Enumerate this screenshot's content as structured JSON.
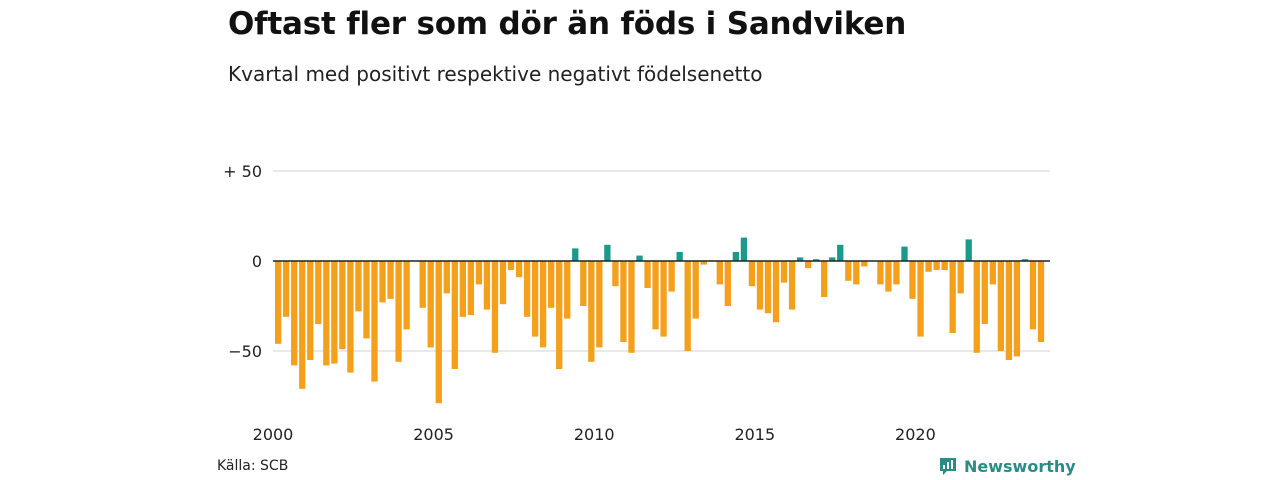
{
  "title": "Oftast fler som dör än föds i Sandviken",
  "subtitle": "Kvartal med positivt respektive negativt födelsenetto",
  "source": "Källa: SCB",
  "brand": {
    "name": "Newsworthy",
    "icon": "newsworthy-logo-icon",
    "color": "#2a8c86"
  },
  "chart_data": {
    "type": "bar",
    "x_start": "2000-Q1",
    "x_tick_labels": [
      "2000",
      "2005",
      "2010",
      "2015",
      "2020"
    ],
    "y_tick_labels": [
      "+ 50",
      "0",
      "−50"
    ],
    "y_ticks": [
      50,
      0,
      -50
    ],
    "ylim": [
      -80,
      50
    ],
    "grid": true,
    "colors": {
      "positive": "#1a9a8a",
      "negative": "#f5a01a"
    },
    "values": [
      -46,
      -31,
      -58,
      -71,
      -55,
      -35,
      -58,
      -57,
      -49,
      -62,
      -28,
      -43,
      -67,
      -23,
      -21,
      -56,
      -38,
      0,
      -26,
      -48,
      -79,
      -18,
      -60,
      -31,
      -30,
      -13,
      -27,
      -51,
      -24,
      -5,
      -9,
      -31,
      -42,
      -48,
      -26,
      -60,
      -32,
      7,
      -25,
      -56,
      -48,
      9,
      -14,
      -45,
      -51,
      3,
      -15,
      -38,
      -42,
      -17,
      5,
      -50,
      -32,
      -2,
      0,
      -13,
      -25,
      5,
      13,
      -14,
      -27,
      -29,
      -34,
      -12,
      -27,
      2,
      -4,
      1,
      -20,
      2,
      9,
      -11,
      -13,
      -3,
      0,
      -13,
      -17,
      -13,
      8,
      -21,
      -42,
      -6,
      -5,
      -5,
      -40,
      -18,
      12,
      -51,
      -35,
      -13,
      -50,
      -55,
      -53,
      1,
      -38,
      -45
    ]
  }
}
